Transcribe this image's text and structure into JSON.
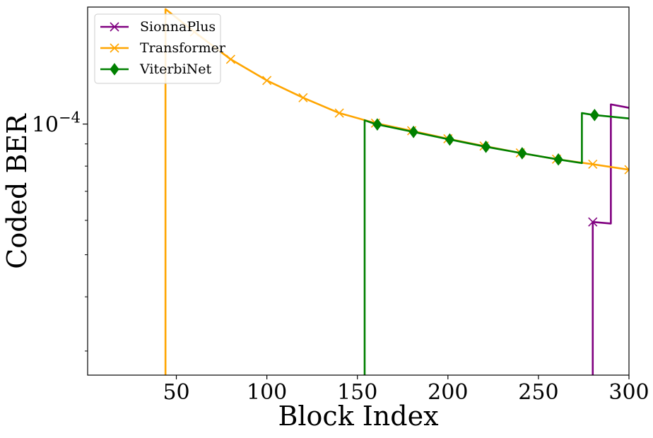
{
  "chart_data": {
    "type": "line",
    "xlabel": "Block Index",
    "ylabel": "Coded BER",
    "xlim": [
      1,
      300
    ],
    "ylim": [
      2.64e-05,
      0.000186
    ],
    "y_scale": "log",
    "grid": false,
    "legend_position": "top-left",
    "x_ticks": [
      {
        "value": 50,
        "label": "50"
      },
      {
        "value": 100,
        "label": "100"
      },
      {
        "value": 150,
        "label": "150"
      },
      {
        "value": 200,
        "label": "200"
      },
      {
        "value": 250,
        "label": "250"
      },
      {
        "value": 300,
        "label": "300"
      }
    ],
    "y_major_ticks": [
      {
        "value": 0.0001,
        "base": "10",
        "exponent": "−4"
      }
    ],
    "y_minor_ticks": [
      3e-05,
      4e-05,
      5e-05,
      6e-05,
      7e-05,
      8e-05,
      9e-05,
      0.0002
    ],
    "series": [
      {
        "name": "SionnaPlus",
        "color": "#800080",
        "marker": "x",
        "points": [
          [
            280,
            1e-05
          ],
          [
            280,
            5.95e-05
          ],
          [
            290,
            5.9e-05
          ],
          [
            290,
            0.000111
          ],
          [
            300,
            0.000109
          ]
        ],
        "marker_x": [
          280
        ]
      },
      {
        "name": "Transformer",
        "color": "#FFA500",
        "marker": "x",
        "points": [
          [
            44,
            1e-05
          ],
          [
            44,
            0.000184
          ],
          [
            60,
            0.000163
          ],
          [
            80,
            0.000141
          ],
          [
            100,
            0.000126
          ],
          [
            120,
            0.000115
          ],
          [
            140,
            0.000106
          ],
          [
            160,
            0.0001005
          ],
          [
            180,
            9.65e-05
          ],
          [
            200,
            9.25e-05
          ],
          [
            220,
            8.9e-05
          ],
          [
            240,
            8.58e-05
          ],
          [
            260,
            8.3e-05
          ],
          [
            280,
            8.08e-05
          ],
          [
            300,
            7.85e-05
          ]
        ],
        "marker_x": [
          60,
          80,
          100,
          120,
          140,
          160,
          180,
          200,
          220,
          240,
          260,
          280,
          300
        ]
      },
      {
        "name": "ViterbiNet",
        "color": "#008000",
        "marker": "diamond",
        "points": [
          [
            154,
            1e-05
          ],
          [
            154,
            0.000102
          ],
          [
            160,
            0.0001
          ],
          [
            180,
            9.61e-05
          ],
          [
            200,
            9.23e-05
          ],
          [
            220,
            8.88e-05
          ],
          [
            240,
            8.58e-05
          ],
          [
            260,
            8.3e-05
          ],
          [
            274,
            8.13e-05
          ],
          [
            274,
            0.000106
          ],
          [
            280,
            0.000105
          ],
          [
            300,
            0.000103
          ]
        ],
        "marker_x": [
          161,
          181,
          201,
          221,
          241,
          261,
          281
        ]
      }
    ]
  }
}
